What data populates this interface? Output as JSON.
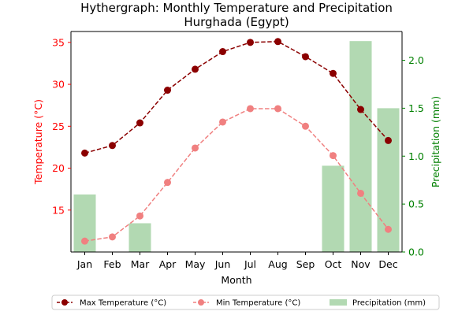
{
  "chart_data": {
    "type": "line",
    "title": "Hythergraph: Monthly Temperature and Precipitation\nHurghada (Egypt)",
    "xlabel": "Month",
    "ylabel_left": "Temperature (°C)",
    "ylabel_right": "Precipitation (mm)",
    "categories": [
      "Jan",
      "Feb",
      "Mar",
      "Apr",
      "May",
      "Jun",
      "Jul",
      "Aug",
      "Sep",
      "Oct",
      "Nov",
      "Dec"
    ],
    "ylim_left": [
      10.0,
      36.3
    ],
    "ylim_right": [
      0.0,
      2.3
    ],
    "yticks_left": [
      15,
      20,
      25,
      30,
      35
    ],
    "yticks_right": [
      0.0,
      0.5,
      1.0,
      1.5,
      2.0
    ],
    "yticks_right_labels": [
      "0.0",
      "0.5",
      "1.0",
      "1.5",
      "2.0"
    ],
    "series": [
      {
        "name": "Max Temperature (°C)",
        "kind": "line",
        "axis": "left",
        "color": "#8b0000",
        "values": [
          21.8,
          22.7,
          25.4,
          29.3,
          31.8,
          33.9,
          35.0,
          35.1,
          33.3,
          31.3,
          27.0,
          23.3
        ]
      },
      {
        "name": "Min Temperature (°C)",
        "kind": "line",
        "axis": "left",
        "color": "#f08080",
        "values": [
          11.3,
          11.8,
          14.3,
          18.3,
          22.4,
          25.5,
          27.1,
          27.1,
          25.0,
          21.5,
          17.0,
          12.7
        ]
      },
      {
        "name": "Precipitation (mm)",
        "kind": "bar",
        "axis": "right",
        "color": "#b2d9b2",
        "values": [
          0.6,
          0.0,
          0.3,
          0.0,
          0.0,
          0.0,
          0.0,
          0.0,
          0.0,
          0.9,
          2.2,
          1.5
        ]
      }
    ],
    "legend_position": "bottom",
    "grid": false
  }
}
